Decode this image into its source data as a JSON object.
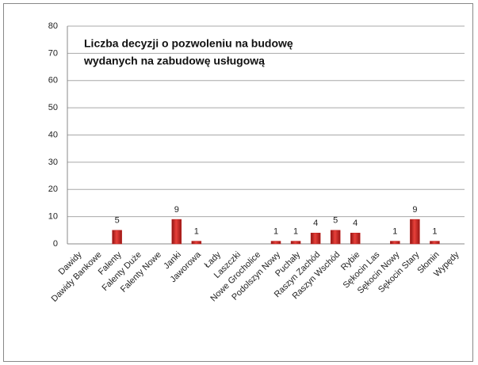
{
  "chart_data": {
    "type": "bar",
    "title": [
      "Liczba decyzji o pozwoleniu na budowę",
      "wydanych na zabudowę usługową"
    ],
    "categories": [
      "Dawidy",
      "Dawidy Bankowe",
      "Falenty",
      "Falenty Duże",
      "Falenty Nowe",
      "Janki",
      "Jaworowa",
      "Łady",
      "Laszczki",
      "Nowe Grocholice",
      "Podolszyn Nowy",
      "Puchały",
      "Raszyn Zachód",
      "Raszyn Wschód",
      "Rybie",
      "Sękocin Las",
      "Sękocin Nowy",
      "Sękocin Stary",
      "Słomin",
      "Wypędy"
    ],
    "values": [
      0,
      0,
      5,
      0,
      0,
      9,
      1,
      0,
      0,
      0,
      1,
      1,
      4,
      5,
      4,
      0,
      1,
      9,
      1,
      0
    ],
    "value_labels": [
      null,
      null,
      "5",
      null,
      null,
      "9",
      "1",
      null,
      null,
      null,
      "1",
      "1",
      "4",
      "5",
      "4",
      null,
      "1",
      "9",
      "1",
      null
    ],
    "color": "#c0201e",
    "ylim": [
      0,
      80
    ],
    "yticks": [
      0,
      10,
      20,
      30,
      40,
      50,
      60,
      70,
      80
    ],
    "grid": true
  }
}
